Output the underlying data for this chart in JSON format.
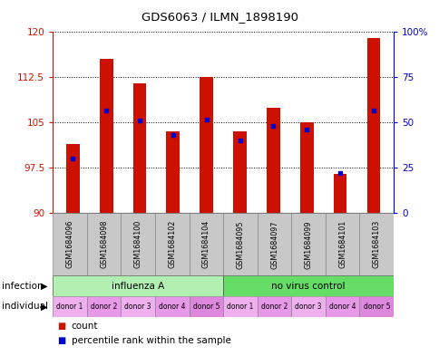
{
  "title": "GDS6063 / ILMN_1898190",
  "samples": [
    "GSM1684096",
    "GSM1684098",
    "GSM1684100",
    "GSM1684102",
    "GSM1684104",
    "GSM1684095",
    "GSM1684097",
    "GSM1684099",
    "GSM1684101",
    "GSM1684103"
  ],
  "count_values": [
    101.5,
    115.5,
    111.5,
    103.5,
    112.5,
    103.5,
    107.5,
    105.0,
    96.5,
    119.0
  ],
  "percentile_values": [
    99.0,
    107.0,
    105.3,
    103.0,
    105.5,
    102.0,
    104.5,
    103.8,
    96.7,
    107.0
  ],
  "ymin": 90,
  "ymax": 120,
  "yticks": [
    90,
    97.5,
    105,
    112.5,
    120
  ],
  "ytick_labels": [
    "90",
    "97.5",
    "105",
    "112.5",
    "120"
  ],
  "right_yticks": [
    0,
    25,
    50,
    75,
    100
  ],
  "right_ytick_labels": [
    "0",
    "25",
    "50",
    "75",
    "100%"
  ],
  "infection_groups": [
    {
      "label": "influenza A",
      "start": 0,
      "end": 5,
      "color": "#b2f0b2"
    },
    {
      "label": "no virus control",
      "start": 5,
      "end": 10,
      "color": "#66dd66"
    }
  ],
  "individual_labels": [
    "donor 1",
    "donor 2",
    "donor 3",
    "donor 4",
    "donor 5",
    "donor 1",
    "donor 2",
    "donor 3",
    "donor 4",
    "donor 5"
  ],
  "individual_colors": [
    "#f0b0f0",
    "#e898e8",
    "#f0b0f0",
    "#e898e8",
    "#dd88dd",
    "#f0b0f0",
    "#e898e8",
    "#f0b0f0",
    "#e898e8",
    "#dd88dd"
  ],
  "bar_color": "#cc1100",
  "marker_color": "#0000cc",
  "bar_width": 0.4
}
